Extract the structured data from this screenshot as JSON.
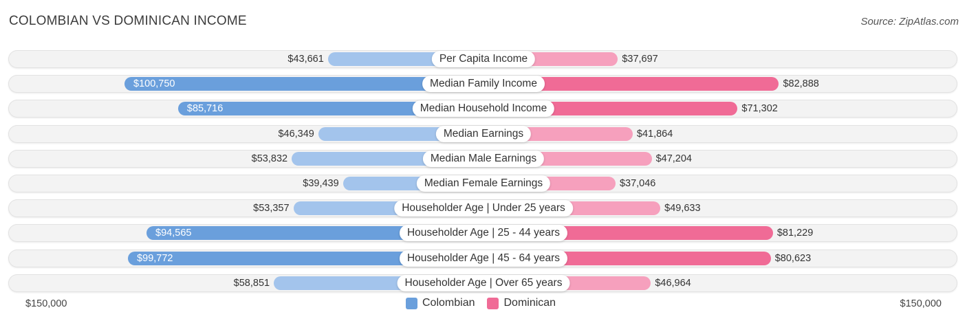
{
  "title": "COLOMBIAN VS DOMINICAN INCOME",
  "source": "Source: ZipAtlas.com",
  "colors": {
    "colombian_strong": "#6a9fdc",
    "colombian_light": "#a3c4ec",
    "dominican_strong": "#f06b96",
    "dominican_light": "#f6a0bd"
  },
  "axis": {
    "left_label": "$150,000",
    "right_label": "$150,000"
  },
  "legend": {
    "colombian": "Colombian",
    "dominican": "Dominican"
  },
  "chart_data": {
    "type": "bar",
    "orientation": "horizontal-diverging",
    "max": 150000,
    "categories": [
      "Per Capita Income",
      "Median Family Income",
      "Median Household Income",
      "Median Earnings",
      "Median Male Earnings",
      "Median Female Earnings",
      "Householder Age | Under 25 years",
      "Householder Age | 25 - 44 years",
      "Householder Age | 45 - 64 years",
      "Householder Age | Over 65 years"
    ],
    "series": [
      {
        "name": "Colombian",
        "values": [
          43661,
          100750,
          85716,
          46349,
          53832,
          39439,
          53357,
          94565,
          99772,
          58851
        ],
        "labels": [
          "$43,661",
          "$100,750",
          "$85,716",
          "$46,349",
          "$53,832",
          "$39,439",
          "$53,357",
          "$94,565",
          "$99,772",
          "$58,851"
        ]
      },
      {
        "name": "Dominican",
        "values": [
          37697,
          82888,
          71302,
          41864,
          47204,
          37046,
          49633,
          81229,
          80623,
          46964
        ],
        "labels": [
          "$37,697",
          "$82,888",
          "$71,302",
          "$41,864",
          "$47,204",
          "$37,046",
          "$49,633",
          "$81,229",
          "$80,623",
          "$46,964"
        ]
      }
    ],
    "xlim": [
      -150000,
      150000
    ],
    "legend_position": "bottom-center"
  }
}
